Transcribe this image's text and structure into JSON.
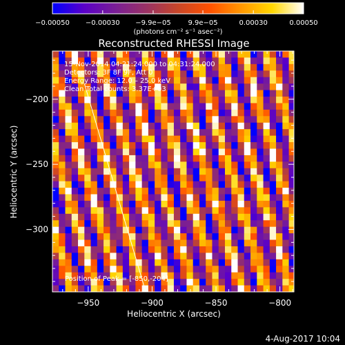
{
  "chart_data": {
    "type": "heatmap",
    "title": "Reconstructed RHESSI Image",
    "xlabel": "Heliocentric X (arcsec)",
    "ylabel": "Heliocentric Y (arcsec)",
    "xlim": [
      -978,
      -789
    ],
    "ylim": [
      -348,
      -163
    ],
    "x_ticks": [
      {
        "value": -950,
        "label": "−950"
      },
      {
        "value": -900,
        "label": "−900"
      },
      {
        "value": -850,
        "label": "−850"
      },
      {
        "value": -800,
        "label": "−800"
      }
    ],
    "y_ticks": [
      {
        "value": -200,
        "label": "−200"
      },
      {
        "value": -250,
        "label": "−250"
      },
      {
        "value": -300,
        "label": "−300"
      }
    ],
    "colorbar": {
      "range": [
        -0.0005,
        0.0005
      ],
      "tick_values": [
        -0.0005,
        -0.0003,
        -9.9e-05,
        9.9e-05,
        0.0003,
        0.0005
      ],
      "tick_labels": [
        "−0.00050",
        "−0.00030",
        "−9.9e−05",
        "9.9e−05",
        "0.00030",
        "0.00050"
      ],
      "units_label": "(photons cm⁻² s⁻¹ asec⁻²)",
      "colormap": [
        "#0000ff",
        "#5a00c8",
        "#7a1e96",
        "#9a3264",
        "#c84628",
        "#ff5000",
        "#ff9600",
        "#ffd700",
        "#ffffff"
      ]
    },
    "annotations": [
      "15-Nov-2014 04:21:24.000 to 04:31:24.000",
      "Detectors: 3F 8F 9F, Att 0",
      "Energy Range: 12.0 – 25.0 keV",
      "Clean     Total counts: 3.37E+03"
    ],
    "limb_line": [
      {
        "x": -953,
        "y": -188
      },
      {
        "x": -905,
        "y": -348
      }
    ],
    "peak_position": {
      "label": "Position of Peak = [-850,-204]",
      "x": -850,
      "y": -204
    },
    "heatmap_pattern": {
      "description_note": "diagonal fringe stripes from detector modulation",
      "stripe_period_arcsec": 19,
      "stripe_slope_dy_dx": -3.2
    }
  },
  "footer": {
    "date_stamp": "4-Aug-2017 10:04"
  }
}
